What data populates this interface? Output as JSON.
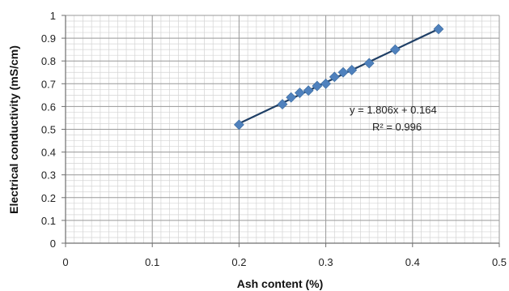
{
  "chart_data": {
    "type": "scatter",
    "title": "",
    "xlabel": "Ash content (%)",
    "ylabel": "Electrical conductivity (mS/cm)",
    "xlim": [
      0,
      0.5
    ],
    "ylim": [
      0,
      1
    ],
    "x_ticks": [
      "0",
      "0.1",
      "0.2",
      "0.3",
      "0.4",
      "0.5"
    ],
    "y_ticks": [
      "0",
      "0.1",
      "0.2",
      "0.3",
      "0.4",
      "0.5",
      "0.6",
      "0.7",
      "0.8",
      "0.9",
      "1"
    ],
    "grid": true,
    "series": [
      {
        "marker": "diamond",
        "color": "#4f81bd",
        "points": [
          {
            "x": 0.2,
            "y": 0.52
          },
          {
            "x": 0.25,
            "y": 0.61
          },
          {
            "x": 0.26,
            "y": 0.64
          },
          {
            "x": 0.27,
            "y": 0.66
          },
          {
            "x": 0.28,
            "y": 0.67
          },
          {
            "x": 0.29,
            "y": 0.69
          },
          {
            "x": 0.3,
            "y": 0.7
          },
          {
            "x": 0.31,
            "y": 0.73
          },
          {
            "x": 0.32,
            "y": 0.75
          },
          {
            "x": 0.33,
            "y": 0.76
          },
          {
            "x": 0.35,
            "y": 0.79
          },
          {
            "x": 0.38,
            "y": 0.85
          },
          {
            "x": 0.43,
            "y": 0.94
          }
        ]
      }
    ],
    "trendline": {
      "slope": 1.806,
      "intercept": 0.164,
      "x_range": [
        0.2,
        0.43
      ],
      "color": "#1f3f66",
      "equation": "y = 1.806x + 0.164",
      "r_squared": "R² = 0.996"
    }
  }
}
